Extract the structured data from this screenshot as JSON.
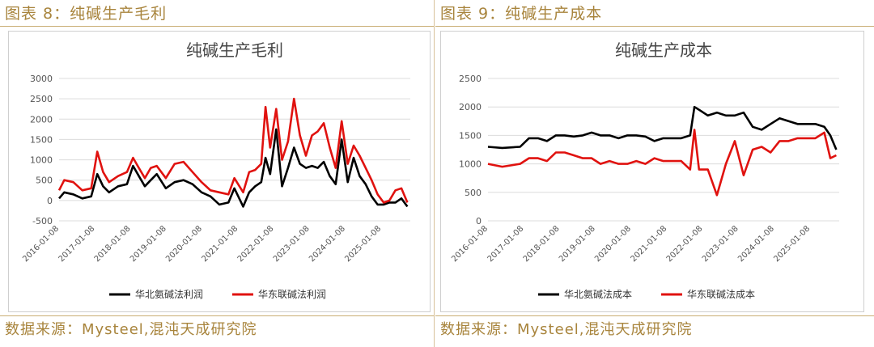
{
  "figures": [
    {
      "header": "图表 8：纯碱生产毛利",
      "source": "数据来源：Mysteel,混沌天成研究院"
    },
    {
      "header": "图表 9：纯碱生产成本",
      "source": "数据来源：Mysteel,混沌天成研究院"
    }
  ],
  "chart_data": [
    {
      "type": "line",
      "title": "纯碱生产毛利",
      "xlabel": "",
      "ylabel": "",
      "ylim": [
        -500,
        3000
      ],
      "yticks": [
        -500,
        0,
        500,
        1000,
        1500,
        2000,
        2500,
        3000
      ],
      "x_range": [
        "2016-01-08",
        "2025-10-31"
      ],
      "xticks": [
        "2016-01-08",
        "2017-01-08",
        "2018-01-08",
        "2019-01-08",
        "2020-01-08",
        "2021-01-08",
        "2022-01-08",
        "2023-01-08",
        "2024-01-08",
        "2025-01-08"
      ],
      "grid": true,
      "legend_position": "bottom",
      "series": [
        {
          "name": "华北氨碱法利润",
          "color": "#000000",
          "x": [
            "2016-01-08",
            "2016-03-01",
            "2016-06-01",
            "2016-09-01",
            "2016-12-01",
            "2017-02-01",
            "2017-04-01",
            "2017-06-01",
            "2017-09-01",
            "2017-12-01",
            "2018-02-01",
            "2018-04-01",
            "2018-06-01",
            "2018-08-01",
            "2018-10-01",
            "2019-01-01",
            "2019-04-01",
            "2019-07-01",
            "2019-10-01",
            "2020-01-01",
            "2020-04-01",
            "2020-07-01",
            "2020-10-01",
            "2020-12-01",
            "2021-03-01",
            "2021-05-01",
            "2021-07-01",
            "2021-09-01",
            "2021-10-15",
            "2021-12-01",
            "2022-02-01",
            "2022-04-01",
            "2022-06-01",
            "2022-08-01",
            "2022-10-01",
            "2022-12-01",
            "2023-02-01",
            "2023-04-01",
            "2023-06-01",
            "2023-08-01",
            "2023-10-01",
            "2023-12-01",
            "2024-02-01",
            "2024-04-01",
            "2024-06-01",
            "2024-08-01",
            "2024-10-01",
            "2024-12-01",
            "2025-02-01",
            "2025-04-01",
            "2025-06-01",
            "2025-08-01",
            "2025-10-01"
          ],
          "y": [
            50,
            200,
            150,
            50,
            100,
            650,
            350,
            200,
            350,
            400,
            850,
            600,
            350,
            500,
            650,
            300,
            450,
            500,
            400,
            200,
            100,
            -100,
            -50,
            300,
            -150,
            200,
            350,
            450,
            1050,
            650,
            1750,
            350,
            800,
            1300,
            900,
            800,
            850,
            800,
            950,
            600,
            400,
            1500,
            450,
            1050,
            600,
            400,
            100,
            -100,
            -100,
            -50,
            -50,
            50,
            -150
          ]
        },
        {
          "name": "华东联碱法利润",
          "color": "#e0120f",
          "x": [
            "2016-01-08",
            "2016-03-01",
            "2016-06-01",
            "2016-09-01",
            "2016-12-01",
            "2017-02-01",
            "2017-04-01",
            "2017-06-01",
            "2017-09-01",
            "2017-12-01",
            "2018-02-01",
            "2018-04-01",
            "2018-06-01",
            "2018-08-01",
            "2018-10-01",
            "2019-01-01",
            "2019-04-01",
            "2019-07-01",
            "2019-10-01",
            "2020-01-01",
            "2020-04-01",
            "2020-07-01",
            "2020-10-01",
            "2020-12-01",
            "2021-03-01",
            "2021-05-01",
            "2021-07-01",
            "2021-09-01",
            "2021-10-15",
            "2021-12-01",
            "2022-02-01",
            "2022-04-01",
            "2022-06-01",
            "2022-08-01",
            "2022-10-01",
            "2022-12-01",
            "2023-02-01",
            "2023-04-01",
            "2023-06-01",
            "2023-08-01",
            "2023-10-01",
            "2023-12-01",
            "2024-02-01",
            "2024-04-01",
            "2024-06-01",
            "2024-08-01",
            "2024-10-01",
            "2024-12-01",
            "2025-02-01",
            "2025-04-01",
            "2025-06-01",
            "2025-08-01",
            "2025-10-01"
          ],
          "y": [
            250,
            500,
            450,
            250,
            300,
            1200,
            700,
            450,
            600,
            700,
            1050,
            800,
            550,
            800,
            850,
            550,
            900,
            950,
            700,
            450,
            250,
            200,
            150,
            550,
            200,
            700,
            750,
            900,
            2300,
            1300,
            2250,
            1000,
            1450,
            2500,
            1600,
            1100,
            1600,
            1700,
            1900,
            1300,
            800,
            1950,
            900,
            1350,
            1100,
            800,
            500,
            150,
            -50,
            0,
            250,
            300,
            -50
          ]
        }
      ]
    },
    {
      "type": "line",
      "title": "纯碱生产成本",
      "xlabel": "",
      "ylabel": "",
      "ylim": [
        0,
        2500
      ],
      "yticks": [
        0,
        500,
        1000,
        1500,
        2000,
        2500
      ],
      "x_range": [
        "2016-01-08",
        "2025-10-31"
      ],
      "xticks": [
        "2016-01-08",
        "2017-01-08",
        "2018-01-08",
        "2019-01-08",
        "2020-01-08",
        "2021-01-08",
        "2022-01-08",
        "2023-01-08",
        "2024-01-08",
        "2025-01-08"
      ],
      "grid": true,
      "legend_position": "bottom",
      "series": [
        {
          "name": "华北氨碱法成本",
          "color": "#000000",
          "x": [
            "2016-01-08",
            "2016-06-01",
            "2016-12-01",
            "2017-03-01",
            "2017-06-01",
            "2017-09-01",
            "2017-12-01",
            "2018-03-01",
            "2018-06-01",
            "2018-09-01",
            "2018-12-01",
            "2019-03-01",
            "2019-06-01",
            "2019-09-01",
            "2019-12-01",
            "2020-03-01",
            "2020-06-01",
            "2020-09-01",
            "2020-12-01",
            "2021-03-01",
            "2021-06-01",
            "2021-09-01",
            "2021-10-15",
            "2021-12-01",
            "2022-03-01",
            "2022-06-01",
            "2022-09-01",
            "2022-12-01",
            "2023-03-01",
            "2023-06-01",
            "2023-09-01",
            "2023-12-01",
            "2024-03-01",
            "2024-06-01",
            "2024-09-01",
            "2024-12-01",
            "2025-03-01",
            "2025-06-01",
            "2025-08-01",
            "2025-10-01"
          ],
          "y": [
            1300,
            1280,
            1300,
            1450,
            1450,
            1400,
            1500,
            1500,
            1480,
            1500,
            1550,
            1500,
            1500,
            1450,
            1500,
            1500,
            1480,
            1400,
            1450,
            1450,
            1450,
            1500,
            2000,
            1950,
            1850,
            1900,
            1850,
            1850,
            1900,
            1650,
            1600,
            1700,
            1800,
            1750,
            1700,
            1700,
            1700,
            1650,
            1500,
            1250
          ]
        },
        {
          "name": "华东联碱法成本",
          "color": "#e0120f",
          "x": [
            "2016-01-08",
            "2016-06-01",
            "2016-12-01",
            "2017-03-01",
            "2017-06-01",
            "2017-09-01",
            "2017-12-01",
            "2018-03-01",
            "2018-06-01",
            "2018-09-01",
            "2018-12-01",
            "2019-03-01",
            "2019-06-01",
            "2019-09-01",
            "2019-12-01",
            "2020-03-01",
            "2020-06-01",
            "2020-09-01",
            "2020-12-01",
            "2021-03-01",
            "2021-06-01",
            "2021-09-01",
            "2021-10-15",
            "2021-12-01",
            "2022-03-01",
            "2022-06-01",
            "2022-09-01",
            "2022-12-01",
            "2023-03-01",
            "2023-06-01",
            "2023-09-01",
            "2023-12-01",
            "2024-03-01",
            "2024-06-01",
            "2024-09-01",
            "2024-12-01",
            "2025-03-01",
            "2025-06-01",
            "2025-08-01",
            "2025-10-01"
          ],
          "y": [
            1000,
            950,
            1000,
            1100,
            1100,
            1050,
            1200,
            1200,
            1150,
            1100,
            1100,
            1000,
            1050,
            1000,
            1000,
            1050,
            1000,
            1100,
            1050,
            1050,
            1050,
            900,
            1600,
            900,
            900,
            450,
            1000,
            1400,
            800,
            1250,
            1300,
            1200,
            1400,
            1400,
            1450,
            1450,
            1450,
            1550,
            1100,
            1150
          ]
        }
      ]
    }
  ]
}
